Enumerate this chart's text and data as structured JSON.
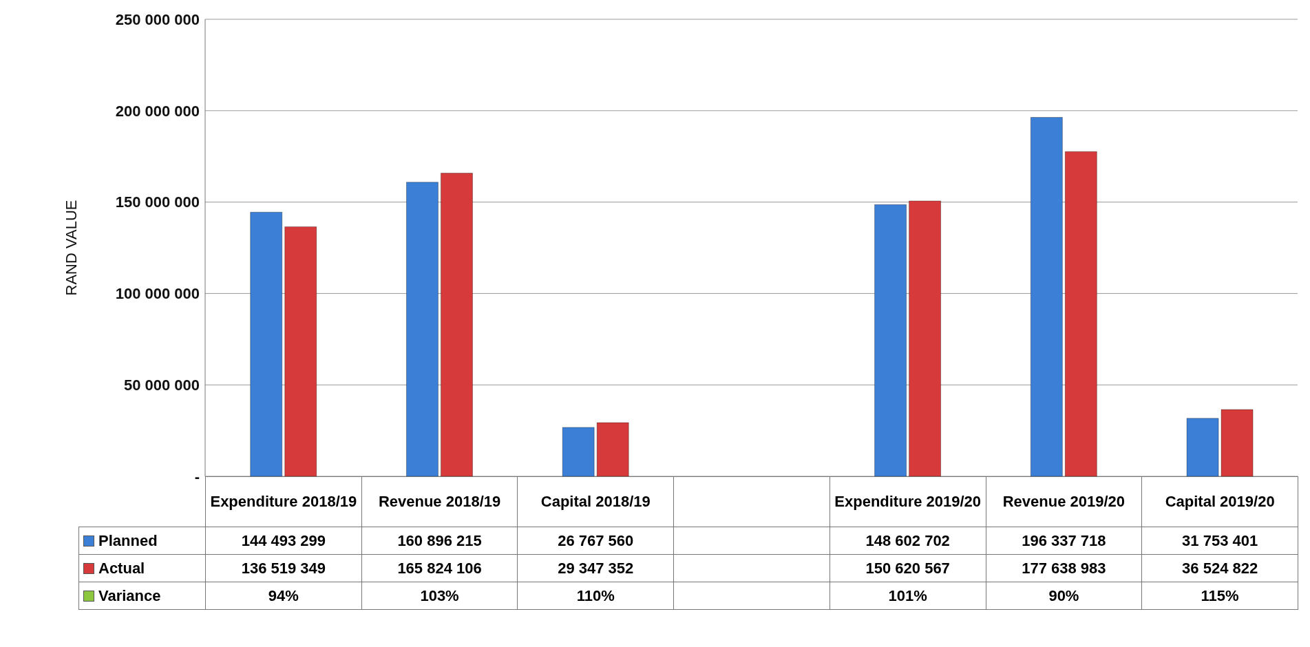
{
  "chart_data": {
    "type": "bar",
    "ylabel": "RAND VALUE",
    "categories": [
      "Expenditure 2018/19",
      "Revenue 2018/19",
      "Capital 2018/19",
      null,
      "Expenditure 2019/20",
      "Revenue 2019/20",
      "Capital 2019/20"
    ],
    "series": [
      {
        "name": "Planned",
        "color": "#3b7fd6",
        "values": [
          144493299,
          160896215,
          26767560,
          null,
          148602702,
          196337718,
          31753401
        ]
      },
      {
        "name": "Actual",
        "color": "#d63a3a",
        "values": [
          136519349,
          165824106,
          29347352,
          null,
          150620567,
          177638983,
          36524822
        ]
      },
      {
        "name": "Variance",
        "color": "#8dc63f",
        "values": [
          null,
          null,
          null,
          null,
          null,
          null,
          null
        ],
        "value_labels": [
          "94%",
          "103%",
          "110%",
          null,
          "101%",
          "90%",
          "115%"
        ]
      }
    ],
    "ylim": [
      0,
      250000000
    ],
    "yticks": [
      {
        "value": 0,
        "label": "-"
      },
      {
        "value": 50000000,
        "label": "50 000 000"
      },
      {
        "value": 100000000,
        "label": "100 000 000"
      },
      {
        "value": 150000000,
        "label": "150 000 000"
      },
      {
        "value": 200000000,
        "label": "200 000 000"
      },
      {
        "value": 250000000,
        "label": "250 000 000"
      }
    ],
    "grid": "y",
    "data_labels": true,
    "legend": "bottom left"
  }
}
